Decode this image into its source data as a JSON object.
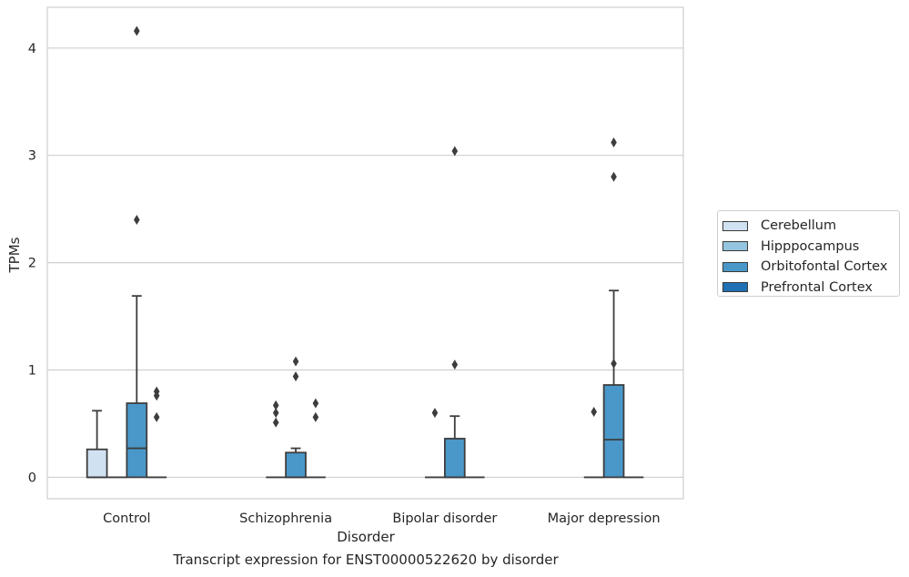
{
  "chart_data": {
    "type": "box",
    "caption": "Transcript expression for ENST00000522620 by disorder",
    "xlabel": "Disorder",
    "ylabel": "TPMs",
    "ylim": [
      -0.2,
      4.38
    ],
    "yticks": [
      0,
      1,
      2,
      3,
      4
    ],
    "grid": true,
    "legend_position": "right",
    "categories": [
      "Control",
      "Schizophrenia",
      "Bipolar disorder",
      "Major depression"
    ],
    "series": [
      {
        "name": "Cerebellum",
        "color": "#d0e1f2",
        "boxes": [
          {
            "q1": 0,
            "median": 0,
            "q3": 0.26,
            "whisker_low": 0,
            "whisker_high": 0.62,
            "outliers": []
          },
          null,
          null,
          null
        ]
      },
      {
        "name": "Hipppocampus",
        "color": "#94c4df",
        "boxes": [
          {
            "q1": 0,
            "median": 0,
            "q3": 0,
            "whisker_low": 0,
            "whisker_high": 0,
            "outliers": []
          },
          {
            "q1": 0,
            "median": 0,
            "q3": 0,
            "whisker_low": 0,
            "whisker_high": 0,
            "outliers": [
              0.51,
              0.6,
              0.67
            ]
          },
          {
            "q1": 0,
            "median": 0,
            "q3": 0,
            "whisker_low": 0,
            "whisker_high": 0,
            "outliers": [
              0.6
            ]
          },
          {
            "q1": 0,
            "median": 0,
            "q3": 0,
            "whisker_low": 0,
            "whisker_high": 0,
            "outliers": [
              0.61
            ]
          }
        ]
      },
      {
        "name": "Orbitofontal Cortex",
        "color": "#4a98c9",
        "boxes": [
          {
            "q1": 0,
            "median": 0.27,
            "q3": 0.69,
            "whisker_low": 0,
            "whisker_high": 1.69,
            "outliers": [
              2.4,
              4.16
            ]
          },
          {
            "q1": 0,
            "median": 0,
            "q3": 0.23,
            "whisker_low": 0,
            "whisker_high": 0.27,
            "outliers": [
              0.94,
              1.08
            ]
          },
          {
            "q1": 0,
            "median": 0,
            "q3": 0.36,
            "whisker_low": 0,
            "whisker_high": 0.57,
            "outliers": [
              1.05,
              3.04
            ]
          },
          {
            "q1": 0,
            "median": 0.35,
            "q3": 0.86,
            "whisker_low": 0,
            "whisker_high": 1.74,
            "outliers": [
              1.06,
              2.8,
              3.12
            ]
          }
        ]
      },
      {
        "name": "Prefrontal Cortex",
        "color": "#2070b4",
        "boxes": [
          {
            "q1": 0,
            "median": 0,
            "q3": 0,
            "whisker_low": 0,
            "whisker_high": 0,
            "outliers": [
              0.56,
              0.76,
              0.8
            ]
          },
          {
            "q1": 0,
            "median": 0,
            "q3": 0,
            "whisker_low": 0,
            "whisker_high": 0,
            "outliers": [
              0.56,
              0.69
            ]
          },
          {
            "q1": 0,
            "median": 0,
            "q3": 0,
            "whisker_low": 0,
            "whisker_high": 0,
            "outliers": []
          },
          {
            "q1": 0,
            "median": 0,
            "q3": 0,
            "whisker_low": 0,
            "whisker_high": 0,
            "outliers": []
          }
        ]
      }
    ]
  }
}
